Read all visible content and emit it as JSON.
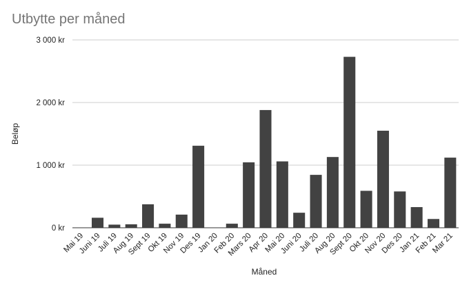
{
  "chart_data": {
    "type": "bar",
    "title": "Utbytte per måned",
    "xlabel": "Måned",
    "ylabel": "Beløp",
    "categories": [
      "Mai 19",
      "Juni 19",
      "Juli 19",
      "Aug 19",
      "Sept 19",
      "Okt 19",
      "Nov 19",
      "Des 19",
      "Jan 20",
      "Feb 20",
      "Mars 20",
      "Apr 20",
      "Mai 20",
      "Juni 20",
      "Juli 20",
      "Aug 20",
      "Sept 20",
      "Okt 20",
      "Nov 20",
      "Des 20",
      "Jan 21",
      "Feb 21",
      "Mar 21"
    ],
    "values": [
      0,
      160,
      50,
      55,
      375,
      65,
      210,
      1310,
      0,
      65,
      1045,
      1880,
      1060,
      240,
      845,
      1130,
      2730,
      590,
      1550,
      580,
      330,
      140,
      1120
    ],
    "ylim": [
      0,
      3000
    ],
    "yticks": [
      0,
      1000,
      2000,
      3000
    ],
    "ytick_labels": [
      "0 kr",
      "1 000 kr",
      "2 000 kr",
      "3 000 kr"
    ],
    "grid": true,
    "bar_color": "#424242",
    "title_color": "#757575",
    "grid_color": "#cccccc"
  }
}
